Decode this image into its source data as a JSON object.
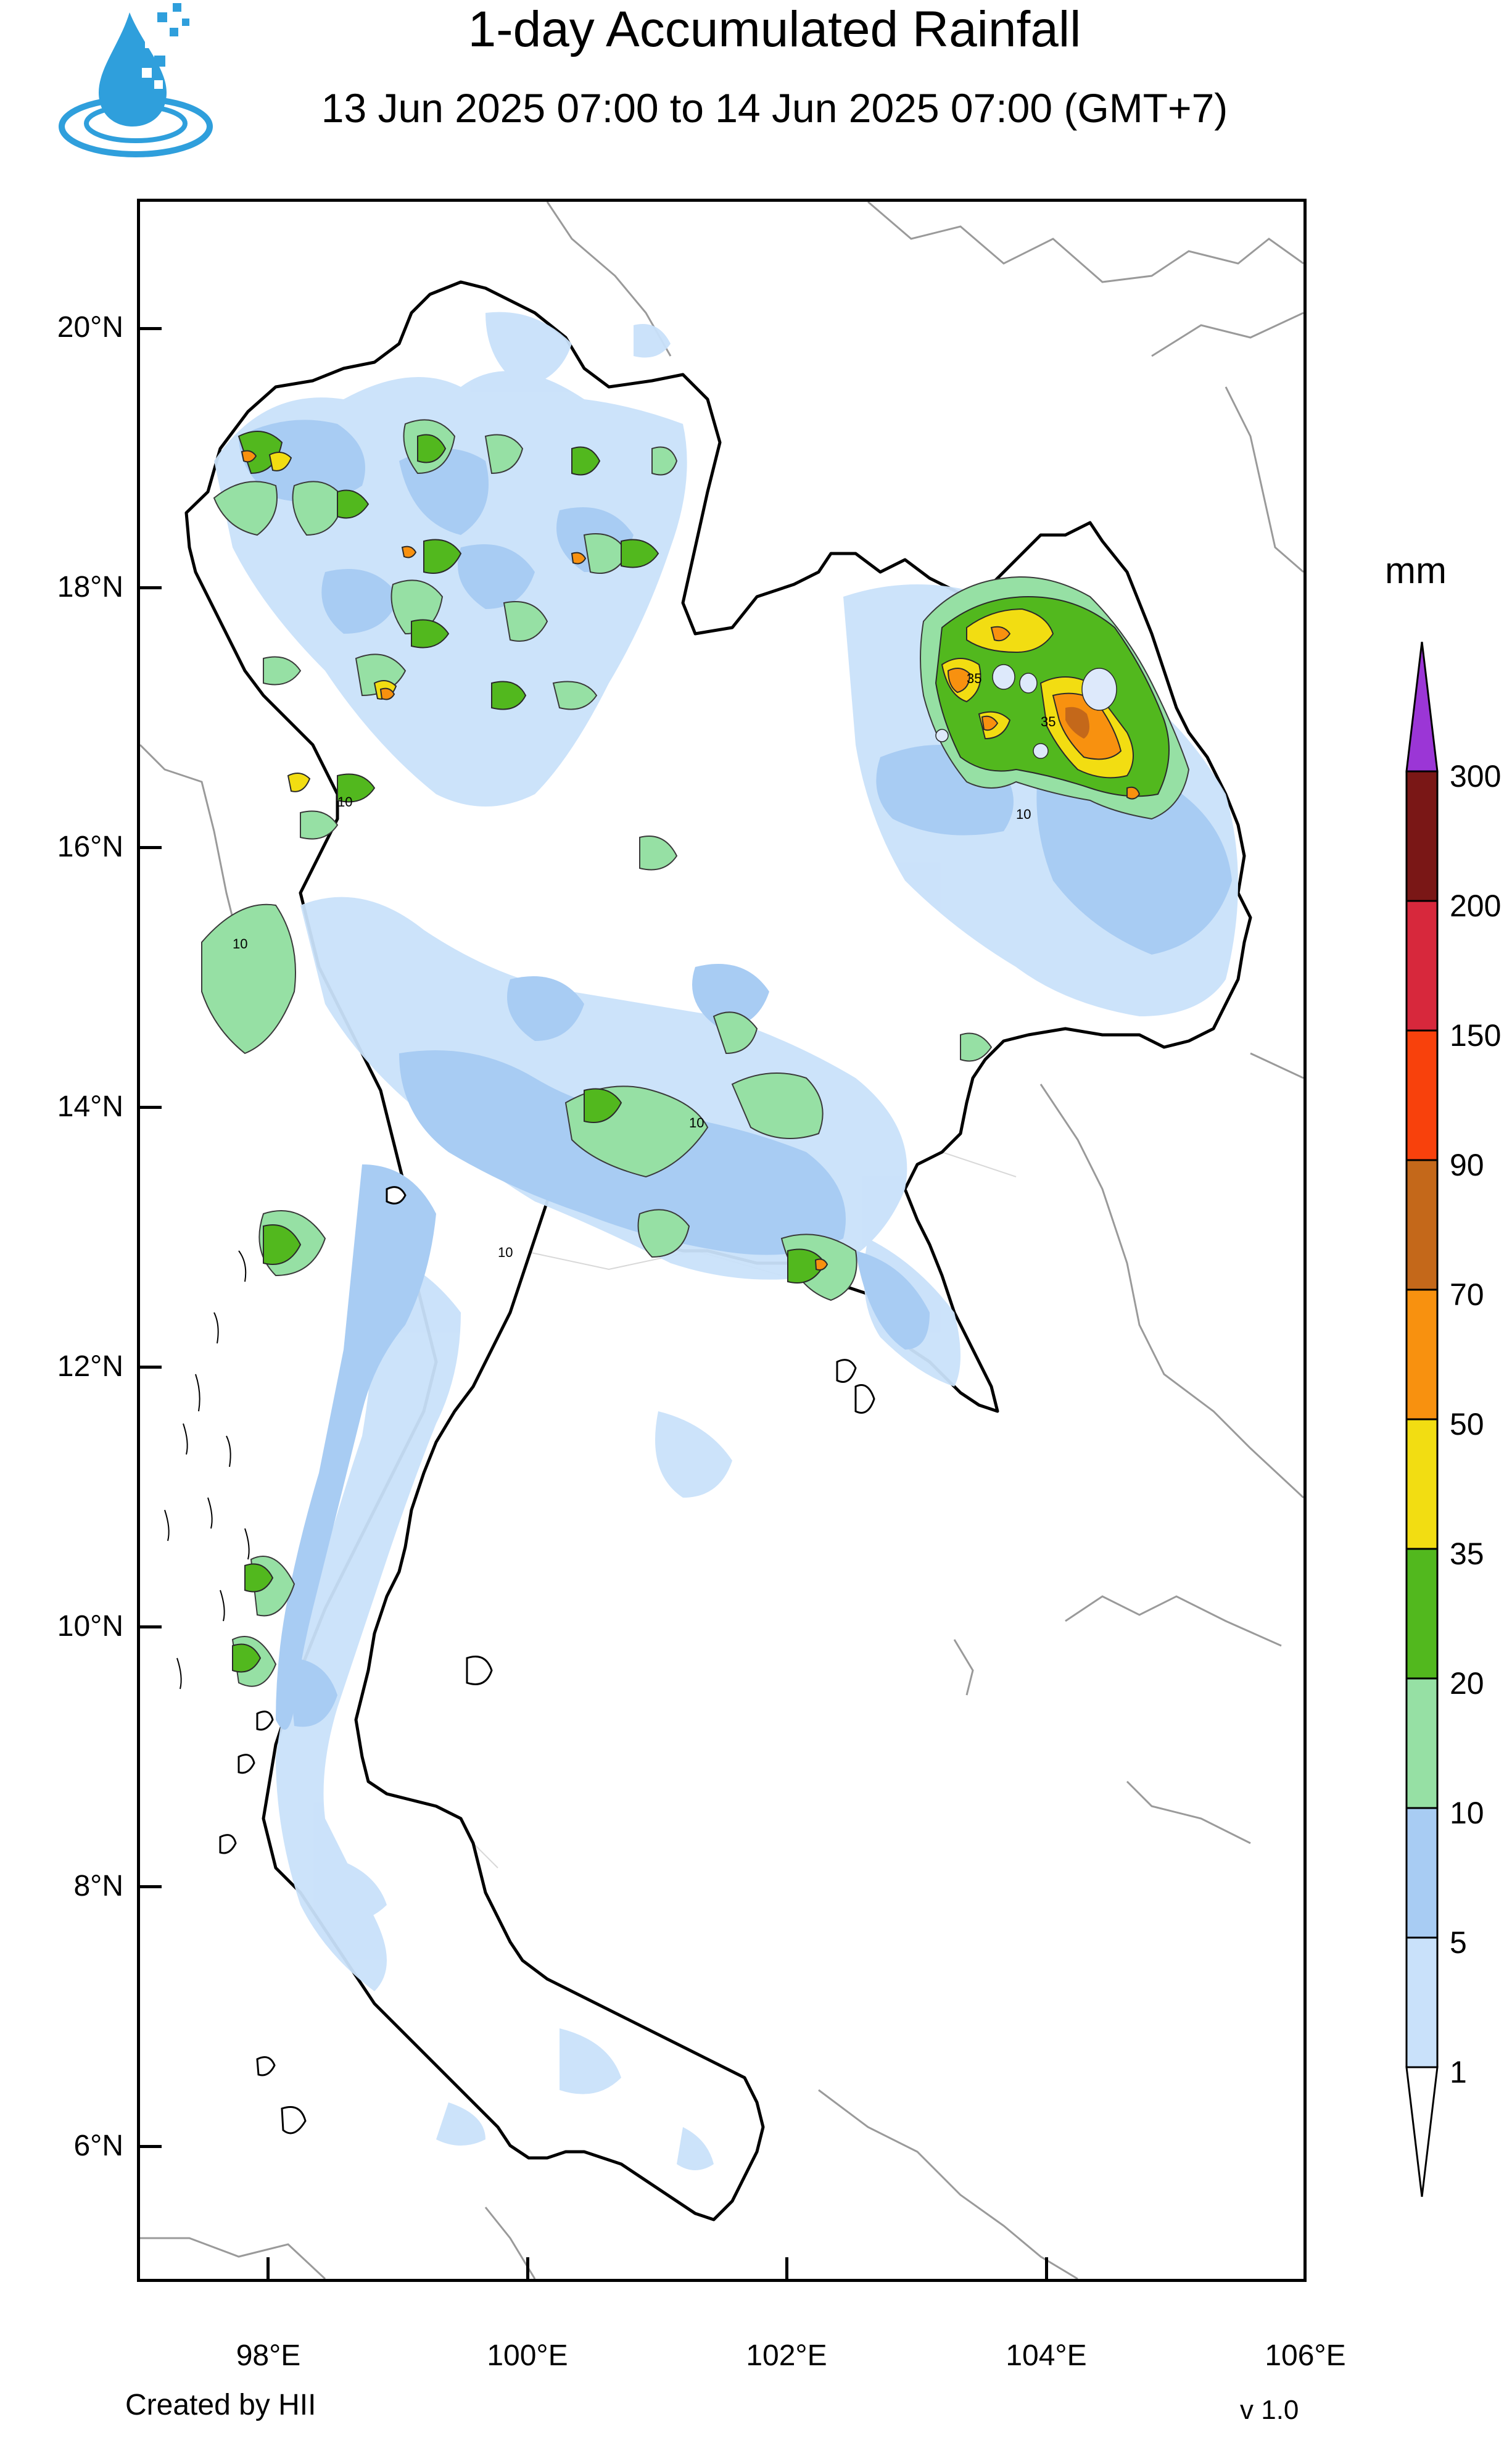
{
  "header": {
    "title": "1-day Accumulated Rainfall",
    "subtitle": "13 Jun 2025 07:00 to 14 Jun 2025 07:00 (GMT+7)"
  },
  "logo": {
    "icon": "water-drop-logo-icon",
    "colors": [
      "#2f9fdc",
      "#1a6fb3"
    ]
  },
  "axes": {
    "lat_labels": [
      "20°N",
      "18°N",
      "16°N",
      "14°N",
      "12°N",
      "10°N",
      "8°N",
      "6°N"
    ],
    "lon_labels": [
      "98°E",
      "100°E",
      "102°E",
      "104°E",
      "106°E"
    ]
  },
  "legend": {
    "unit": "mm",
    "levels": [
      "1",
      "5",
      "10",
      "20",
      "35",
      "50",
      "70",
      "90",
      "150",
      "200",
      "300"
    ],
    "colors": [
      "#c9e1fa",
      "#a8ccf3",
      "#96e0a4",
      "#52b81e",
      "#f2dd12",
      "#f8910f",
      "#c4681a",
      "#f8410c",
      "#d7283c",
      "#7a1716",
      "#9b36d6"
    ],
    "below_color": "#ffffff"
  },
  "map": {
    "land_outline_color": "#000000",
    "border_color": "#b0b0b0",
    "province_color": "#d4d4d4",
    "contour_labels": [
      "10",
      "10",
      "10",
      "35",
      "35",
      "10",
      "10"
    ]
  },
  "footer": {
    "credit": "Created by HII",
    "version": "v 1.0"
  }
}
